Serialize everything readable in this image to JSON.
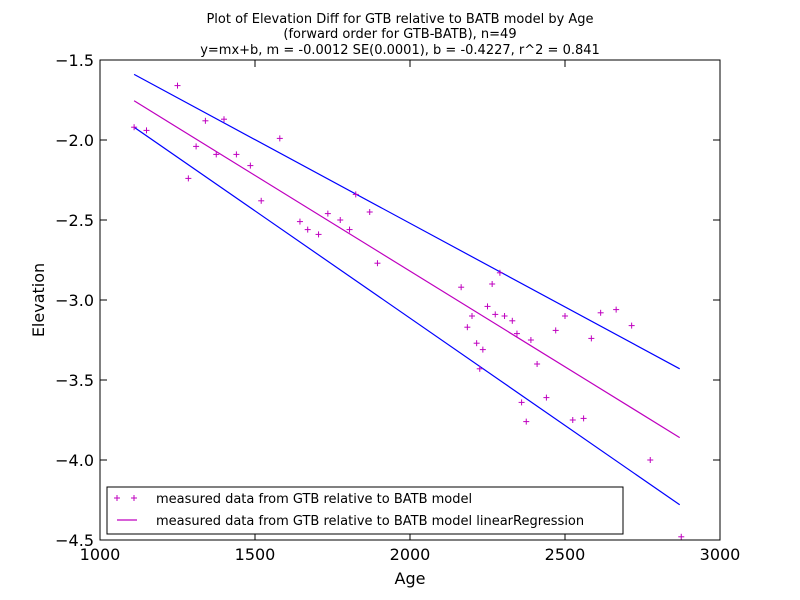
{
  "chart_data": {
    "type": "scatter",
    "title": [
      "Plot of Elevation Diff for GTB relative to BATB model by Age",
      "(forward order for GTB-BATB), n=49",
      "y=mx+b, m = -0.0012 SE(0.0001), b = -0.4227, r^2 = 0.841"
    ],
    "xlabel": "Age",
    "ylabel": "Elevation",
    "xlim": [
      1000,
      3000
    ],
    "ylim": [
      -4.5,
      -1.5
    ],
    "xticks": [
      1000,
      1500,
      2000,
      2500,
      3000
    ],
    "xtick_labels": [
      "1000",
      "1500",
      "2000",
      "2500",
      "3000"
    ],
    "yticks": [
      -1.5,
      -2.0,
      -2.5,
      -3.0,
      -3.5,
      -4.0,
      -4.5
    ],
    "ytick_labels": [
      "−1.5",
      "−2.0",
      "−2.5",
      "−3.0",
      "−3.5",
      "−4.0",
      "−4.5"
    ],
    "grid": false,
    "legend_position": "lower-left",
    "colors": {
      "points": "#bf00bf",
      "regression": "#bf00bf",
      "bounds": "#0000ff"
    },
    "series": [
      {
        "name": "measured data from GTB relative to BATB model",
        "kind": "scatter",
        "marker": "+",
        "points": [
          [
            1110,
            -1.92
          ],
          [
            1150,
            -1.94
          ],
          [
            1250,
            -1.66
          ],
          [
            1285,
            -2.24
          ],
          [
            1310,
            -2.04
          ],
          [
            1340,
            -1.88
          ],
          [
            1375,
            -2.09
          ],
          [
            1400,
            -1.87
          ],
          [
            1440,
            -2.09
          ],
          [
            1485,
            -2.16
          ],
          [
            1520,
            -2.38
          ],
          [
            1580,
            -1.99
          ],
          [
            1645,
            -2.51
          ],
          [
            1670,
            -2.56
          ],
          [
            1705,
            -2.59
          ],
          [
            1735,
            -2.46
          ],
          [
            1775,
            -2.5
          ],
          [
            1805,
            -2.56
          ],
          [
            1825,
            -2.34
          ],
          [
            1870,
            -2.45
          ],
          [
            1895,
            -2.77
          ],
          [
            2165,
            -2.92
          ],
          [
            2185,
            -3.17
          ],
          [
            2200,
            -3.1
          ],
          [
            2215,
            -3.27
          ],
          [
            2225,
            -3.43
          ],
          [
            2235,
            -3.31
          ],
          [
            2250,
            -3.04
          ],
          [
            2265,
            -2.9
          ],
          [
            2275,
            -3.09
          ],
          [
            2290,
            -2.83
          ],
          [
            2305,
            -3.1
          ],
          [
            2330,
            -3.13
          ],
          [
            2345,
            -3.21
          ],
          [
            2360,
            -3.64
          ],
          [
            2375,
            -3.76
          ],
          [
            2390,
            -3.25
          ],
          [
            2410,
            -3.4
          ],
          [
            2440,
            -3.61
          ],
          [
            2470,
            -3.19
          ],
          [
            2500,
            -3.1
          ],
          [
            2525,
            -3.75
          ],
          [
            2560,
            -3.74
          ],
          [
            2585,
            -3.24
          ],
          [
            2615,
            -3.08
          ],
          [
            2665,
            -3.06
          ],
          [
            2715,
            -3.16
          ],
          [
            2775,
            -4.0
          ],
          [
            2875,
            -4.48
          ]
        ]
      },
      {
        "name": "measured data from GTB relative to BATB model linearRegression",
        "kind": "line",
        "points": [
          [
            1110,
            -1.755
          ],
          [
            2870,
            -3.86
          ]
        ]
      },
      {
        "name": "",
        "kind": "line",
        "role": "upper-bound",
        "points": [
          [
            1110,
            -1.59
          ],
          [
            2870,
            -3.43
          ]
        ]
      },
      {
        "name": "",
        "kind": "line",
        "role": "lower-bound",
        "points": [
          [
            1110,
            -1.92
          ],
          [
            2870,
            -4.28
          ]
        ]
      }
    ]
  }
}
